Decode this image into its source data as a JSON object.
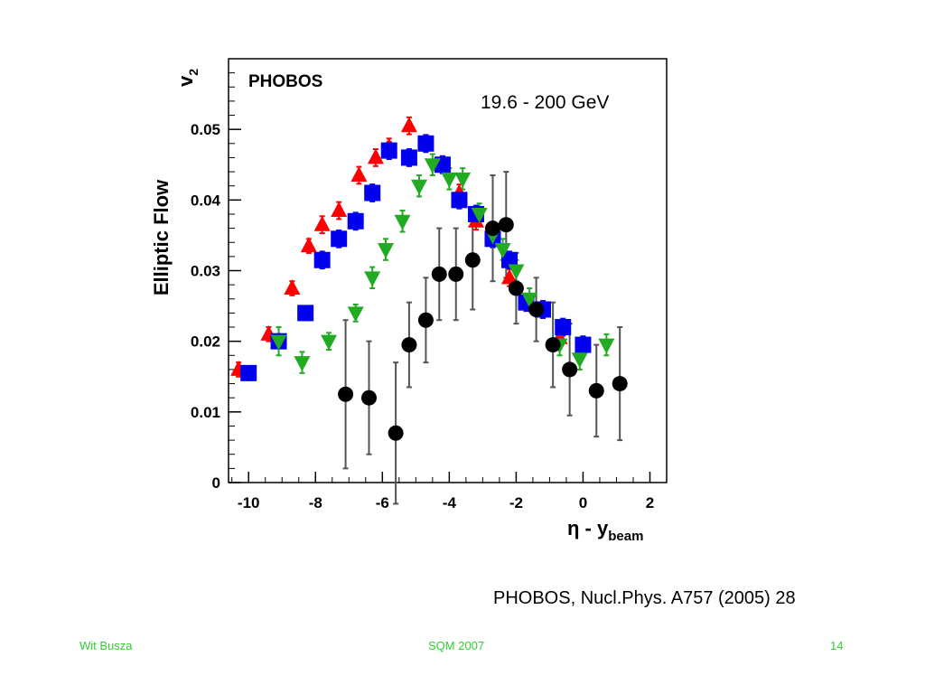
{
  "slide": {
    "citation": "PHOBOS, Nucl.Phys. A757 (2005) 28",
    "footer": {
      "left": "Wit Busza",
      "center": "SQM 2007",
      "right": "14"
    }
  },
  "chart_data": {
    "type": "scatter",
    "title": "",
    "label_experiment": "PHOBOS",
    "annotation": "19.6 - 200 GeV",
    "ylabel": "Elliptic Flow",
    "ylabel_symbol": "v",
    "ylabel_symbol_sub": "2",
    "xlabel_main": "η - y",
    "xlabel_sub": "beam",
    "xlim": [
      -10.6,
      2.5
    ],
    "ylim": [
      0,
      0.06
    ],
    "xticks": [
      -10,
      -8,
      -6,
      -4,
      -2,
      0,
      2
    ],
    "xtick_labels": [
      "-10",
      "-8",
      "-6",
      "-4",
      "-2",
      "0",
      "2"
    ],
    "yticks": [
      0,
      0.01,
      0.02,
      0.03,
      0.04,
      0.05
    ],
    "ytick_labels": [
      "0",
      "0.01",
      "0.02",
      "0.03",
      "0.04",
      "0.05"
    ],
    "grid": false,
    "series": [
      {
        "marker": "triangle-up",
        "color": "#ff0000",
        "points": [
          {
            "x": -10.3,
            "y": 0.016,
            "err": 0.001
          },
          {
            "x": -9.4,
            "y": 0.021,
            "err": 0.001
          },
          {
            "x": -8.7,
            "y": 0.0275,
            "err": 0.001
          },
          {
            "x": -8.2,
            "y": 0.0335,
            "err": 0.001
          },
          {
            "x": -7.8,
            "y": 0.0365,
            "err": 0.0012
          },
          {
            "x": -7.3,
            "y": 0.0385,
            "err": 0.0012
          },
          {
            "x": -6.7,
            "y": 0.0435,
            "err": 0.0012
          },
          {
            "x": -6.2,
            "y": 0.046,
            "err": 0.0012
          },
          {
            "x": -5.8,
            "y": 0.0475,
            "err": 0.0012
          },
          {
            "x": -5.2,
            "y": 0.0505,
            "err": 0.0012
          },
          {
            "x": -4.7,
            "y": 0.048,
            "err": 0.0012
          },
          {
            "x": -4.2,
            "y": 0.045,
            "err": 0.0012
          },
          {
            "x": -3.7,
            "y": 0.041,
            "err": 0.0012
          },
          {
            "x": -3.2,
            "y": 0.037,
            "err": 0.0012
          },
          {
            "x": -2.7,
            "y": 0.0345,
            "err": 0.0012
          },
          {
            "x": -2.2,
            "y": 0.029,
            "err": 0.0012
          },
          {
            "x": -1.7,
            "y": 0.0255,
            "err": 0.0012
          },
          {
            "x": -1.2,
            "y": 0.0245,
            "err": 0.0012
          },
          {
            "x": -0.7,
            "y": 0.0205,
            "err": 0.0012
          }
        ]
      },
      {
        "marker": "square",
        "color": "#0000ee",
        "points": [
          {
            "x": -10.0,
            "y": 0.0155,
            "err": 0.001
          },
          {
            "x": -9.1,
            "y": 0.02,
            "err": 0.001
          },
          {
            "x": -8.3,
            "y": 0.024,
            "err": 0.001
          },
          {
            "x": -7.8,
            "y": 0.0315,
            "err": 0.0012
          },
          {
            "x": -7.3,
            "y": 0.0345,
            "err": 0.0012
          },
          {
            "x": -6.8,
            "y": 0.037,
            "err": 0.0012
          },
          {
            "x": -6.3,
            "y": 0.041,
            "err": 0.0012
          },
          {
            "x": -5.8,
            "y": 0.047,
            "err": 0.0012
          },
          {
            "x": -5.2,
            "y": 0.046,
            "err": 0.0012
          },
          {
            "x": -4.7,
            "y": 0.048,
            "err": 0.0012
          },
          {
            "x": -4.2,
            "y": 0.045,
            "err": 0.0012
          },
          {
            "x": -3.7,
            "y": 0.04,
            "err": 0.0012
          },
          {
            "x": -3.2,
            "y": 0.038,
            "err": 0.0012
          },
          {
            "x": -2.7,
            "y": 0.0345,
            "err": 0.0012
          },
          {
            "x": -2.2,
            "y": 0.0315,
            "err": 0.0012
          },
          {
            "x": -1.7,
            "y": 0.0255,
            "err": 0.0012
          },
          {
            "x": -1.2,
            "y": 0.0245,
            "err": 0.0012
          },
          {
            "x": -0.6,
            "y": 0.022,
            "err": 0.0012
          },
          {
            "x": 0.0,
            "y": 0.0195,
            "err": 0.0012
          }
        ]
      },
      {
        "marker": "triangle-down",
        "color": "#22aa22",
        "points": [
          {
            "x": -9.1,
            "y": 0.02,
            "err": 0.002
          },
          {
            "x": -8.4,
            "y": 0.017,
            "err": 0.0015
          },
          {
            "x": -7.6,
            "y": 0.02,
            "err": 0.0012
          },
          {
            "x": -6.8,
            "y": 0.024,
            "err": 0.0012
          },
          {
            "x": -6.3,
            "y": 0.029,
            "err": 0.0015
          },
          {
            "x": -5.9,
            "y": 0.033,
            "err": 0.0015
          },
          {
            "x": -5.4,
            "y": 0.037,
            "err": 0.0015
          },
          {
            "x": -4.9,
            "y": 0.042,
            "err": 0.0015
          },
          {
            "x": -4.5,
            "y": 0.045,
            "err": 0.0015
          },
          {
            "x": -4.0,
            "y": 0.043,
            "err": 0.0015
          },
          {
            "x": -3.6,
            "y": 0.043,
            "err": 0.0015
          },
          {
            "x": -3.1,
            "y": 0.038,
            "err": 0.0015
          },
          {
            "x": -2.7,
            "y": 0.035,
            "err": 0.0015
          },
          {
            "x": -2.4,
            "y": 0.033,
            "err": 0.0015
          },
          {
            "x": -2.0,
            "y": 0.03,
            "err": 0.0015
          },
          {
            "x": -1.6,
            "y": 0.026,
            "err": 0.0015
          },
          {
            "x": -0.7,
            "y": 0.0195,
            "err": 0.0015
          },
          {
            "x": -0.1,
            "y": 0.0175,
            "err": 0.0015
          },
          {
            "x": 0.7,
            "y": 0.0195,
            "err": 0.0015
          }
        ]
      },
      {
        "marker": "circle",
        "color": "#000000",
        "points": [
          {
            "x": -7.1,
            "y": 0.0125,
            "err": 0.0105
          },
          {
            "x": -6.4,
            "y": 0.012,
            "err": 0.008
          },
          {
            "x": -5.6,
            "y": 0.007,
            "err": 0.01
          },
          {
            "x": -5.2,
            "y": 0.0195,
            "err": 0.006
          },
          {
            "x": -4.7,
            "y": 0.023,
            "err": 0.006
          },
          {
            "x": -4.3,
            "y": 0.0295,
            "err": 0.0065
          },
          {
            "x": -3.8,
            "y": 0.0295,
            "err": 0.0065
          },
          {
            "x": -3.3,
            "y": 0.0315,
            "err": 0.007
          },
          {
            "x": -2.7,
            "y": 0.036,
            "err": 0.0075
          },
          {
            "x": -2.3,
            "y": 0.0365,
            "err": 0.0075
          },
          {
            "x": -2.0,
            "y": 0.0275,
            "err": 0.005
          },
          {
            "x": -1.4,
            "y": 0.0245,
            "err": 0.0045
          },
          {
            "x": -0.9,
            "y": 0.0195,
            "err": 0.006
          },
          {
            "x": -0.4,
            "y": 0.016,
            "err": 0.0065
          },
          {
            "x": 0.4,
            "y": 0.013,
            "err": 0.0065
          },
          {
            "x": 1.1,
            "y": 0.014,
            "err": 0.008
          }
        ]
      }
    ]
  }
}
